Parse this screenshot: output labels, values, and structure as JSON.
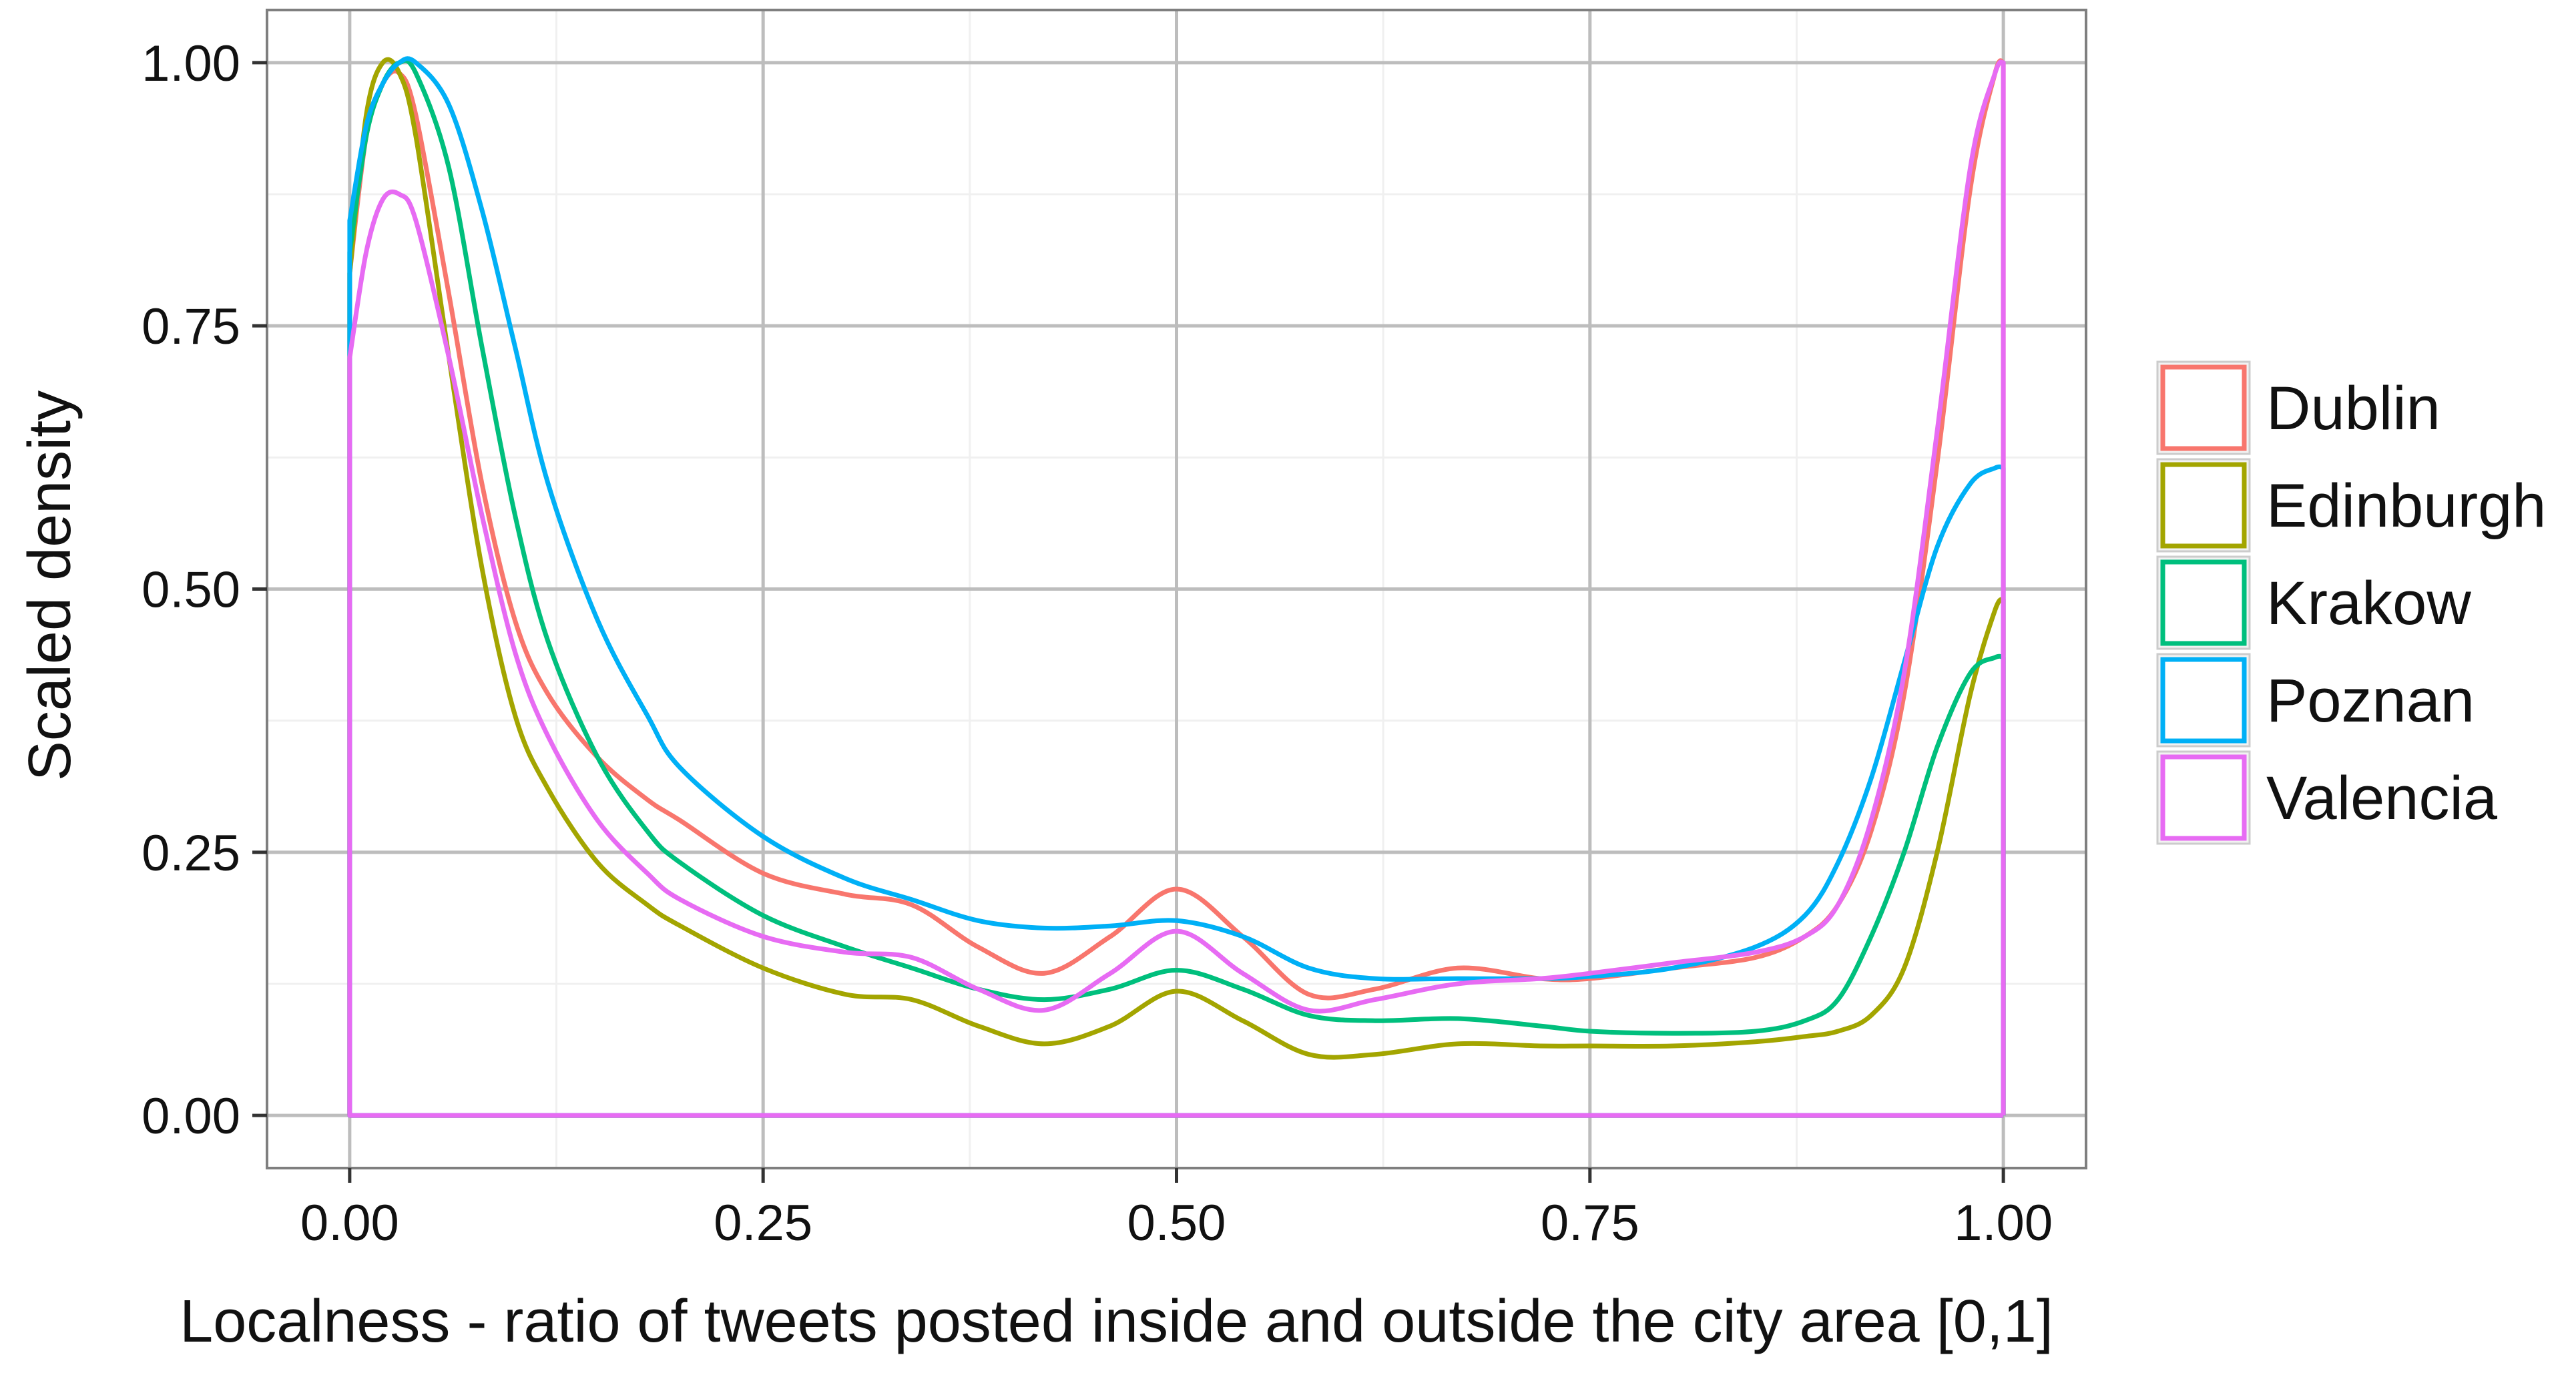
{
  "chart_data": {
    "type": "line",
    "title": "",
    "xlabel": "Localness - ratio of tweets posted inside and outside the city area [0,1]",
    "ylabel": "Scaled density",
    "xlim": [
      -0.05,
      1.05
    ],
    "ylim": [
      -0.05,
      1.05
    ],
    "x_ticks": [
      0,
      0.25,
      0.5,
      0.75,
      1.0
    ],
    "x_tick_labels": [
      "0.00",
      "0.25",
      "0.50",
      "0.75",
      "1.00"
    ],
    "y_ticks": [
      0,
      0.25,
      0.5,
      0.75,
      1.0
    ],
    "y_tick_labels": [
      "0.00",
      "0.25",
      "0.50",
      "0.75",
      "1.00"
    ],
    "grid": true,
    "legend_position": "right",
    "series": [
      {
        "name": "Dublin",
        "color": "#F8766D",
        "x": [
          0,
          0.01,
          0.02,
          0.03,
          0.04,
          0.06,
          0.08,
          0.1,
          0.12,
          0.15,
          0.18,
          0.2,
          0.25,
          0.3,
          0.34,
          0.38,
          0.42,
          0.46,
          0.5,
          0.54,
          0.58,
          0.62,
          0.67,
          0.72,
          0.75,
          0.8,
          0.85,
          0.88,
          0.9,
          0.92,
          0.94,
          0.96,
          0.98,
          0.995,
          1.0
        ],
        "y": [
          0.8,
          0.93,
          0.98,
          0.99,
          0.95,
          0.78,
          0.6,
          0.47,
          0.4,
          0.34,
          0.3,
          0.28,
          0.23,
          0.21,
          0.2,
          0.16,
          0.135,
          0.17,
          0.215,
          0.17,
          0.115,
          0.12,
          0.14,
          0.13,
          0.13,
          0.14,
          0.15,
          0.17,
          0.2,
          0.27,
          0.4,
          0.62,
          0.88,
          0.99,
          1.0
        ]
      },
      {
        "name": "Edinburgh",
        "color": "#A3A500",
        "x": [
          0,
          0.01,
          0.02,
          0.03,
          0.04,
          0.06,
          0.08,
          0.1,
          0.12,
          0.15,
          0.18,
          0.2,
          0.25,
          0.3,
          0.34,
          0.38,
          0.42,
          0.46,
          0.5,
          0.54,
          0.58,
          0.62,
          0.67,
          0.72,
          0.75,
          0.8,
          0.85,
          0.88,
          0.9,
          0.92,
          0.94,
          0.96,
          0.98,
          0.995,
          1.0
        ],
        "y": [
          0.8,
          0.95,
          1.0,
          0.99,
          0.93,
          0.72,
          0.52,
          0.38,
          0.31,
          0.24,
          0.2,
          0.18,
          0.14,
          0.115,
          0.11,
          0.085,
          0.068,
          0.085,
          0.118,
          0.09,
          0.058,
          0.058,
          0.068,
          0.066,
          0.066,
          0.066,
          0.07,
          0.075,
          0.08,
          0.095,
          0.14,
          0.25,
          0.4,
          0.48,
          0.49
        ]
      },
      {
        "name": "Krakow",
        "color": "#00BF7D",
        "x": [
          0,
          0.01,
          0.02,
          0.03,
          0.04,
          0.06,
          0.08,
          0.1,
          0.12,
          0.15,
          0.18,
          0.2,
          0.25,
          0.3,
          0.34,
          0.38,
          0.42,
          0.46,
          0.5,
          0.54,
          0.58,
          0.62,
          0.67,
          0.72,
          0.75,
          0.8,
          0.85,
          0.88,
          0.9,
          0.92,
          0.94,
          0.96,
          0.98,
          0.995,
          1.0
        ],
        "y": [
          0.82,
          0.93,
          0.98,
          1.0,
          0.99,
          0.9,
          0.73,
          0.57,
          0.45,
          0.34,
          0.27,
          0.24,
          0.19,
          0.16,
          0.14,
          0.12,
          0.11,
          0.12,
          0.138,
          0.12,
          0.095,
          0.09,
          0.092,
          0.085,
          0.08,
          0.078,
          0.08,
          0.09,
          0.11,
          0.17,
          0.25,
          0.35,
          0.42,
          0.435,
          0.435
        ]
      },
      {
        "name": "Poznan",
        "color": "#00B0F6",
        "x": [
          0,
          0.01,
          0.02,
          0.03,
          0.04,
          0.06,
          0.08,
          0.1,
          0.12,
          0.15,
          0.18,
          0.2,
          0.25,
          0.3,
          0.34,
          0.38,
          0.42,
          0.46,
          0.5,
          0.54,
          0.58,
          0.62,
          0.67,
          0.72,
          0.75,
          0.8,
          0.85,
          0.88,
          0.9,
          0.92,
          0.94,
          0.96,
          0.98,
          0.995,
          1.0
        ],
        "y": [
          0.85,
          0.94,
          0.98,
          1.0,
          1.0,
          0.96,
          0.86,
          0.73,
          0.6,
          0.47,
          0.38,
          0.33,
          0.265,
          0.225,
          0.205,
          0.185,
          0.178,
          0.18,
          0.185,
          0.17,
          0.14,
          0.13,
          0.13,
          0.13,
          0.132,
          0.14,
          0.16,
          0.19,
          0.24,
          0.32,
          0.43,
          0.54,
          0.6,
          0.615,
          0.615
        ]
      },
      {
        "name": "Valencia",
        "color": "#E76BF3",
        "x": [
          0,
          0.01,
          0.02,
          0.03,
          0.04,
          0.06,
          0.08,
          0.1,
          0.12,
          0.15,
          0.18,
          0.2,
          0.25,
          0.3,
          0.34,
          0.38,
          0.42,
          0.46,
          0.5,
          0.54,
          0.58,
          0.62,
          0.67,
          0.72,
          0.75,
          0.8,
          0.85,
          0.88,
          0.9,
          0.92,
          0.94,
          0.96,
          0.98,
          0.995,
          1.0
        ],
        "y": [
          0.72,
          0.82,
          0.87,
          0.875,
          0.85,
          0.72,
          0.57,
          0.44,
          0.36,
          0.28,
          0.23,
          0.205,
          0.17,
          0.155,
          0.15,
          0.12,
          0.1,
          0.135,
          0.175,
          0.135,
          0.1,
          0.11,
          0.125,
          0.13,
          0.135,
          0.145,
          0.155,
          0.17,
          0.2,
          0.28,
          0.42,
          0.65,
          0.9,
          0.99,
          1.0
        ]
      }
    ]
  }
}
